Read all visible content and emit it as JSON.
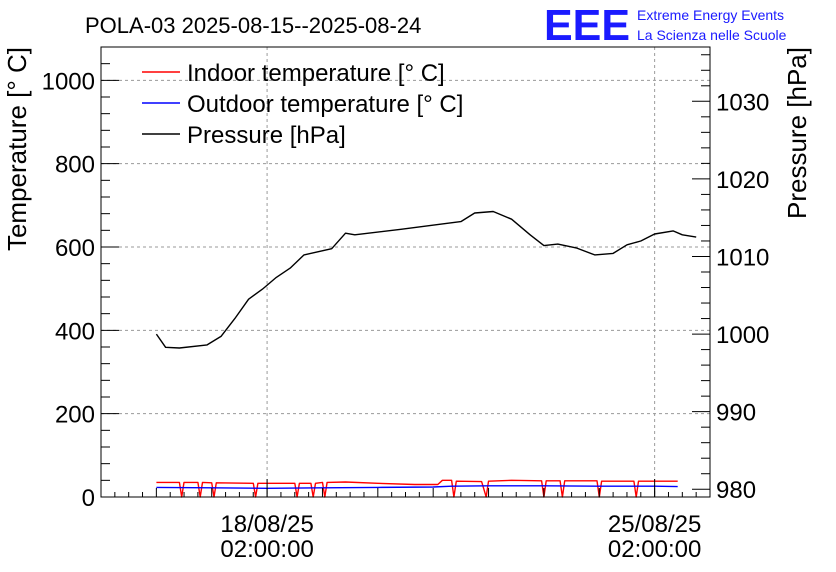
{
  "logo": {
    "mark": "EEE",
    "line1": "Extreme Energy Events",
    "line2": "La Scienza nelle Scuole",
    "color": "#1a1aff"
  },
  "chart_data": {
    "type": "line",
    "title": "POLA-03 2025-08-15--2025-08-24",
    "ylabel": "Temperature [° C]",
    "y2label": "Pressure [hPa]",
    "ylim": [
      0,
      1080
    ],
    "y2lim": [
      979,
      1037
    ],
    "yticks": [
      0,
      200,
      400,
      600,
      800,
      1000
    ],
    "y2ticks": [
      980,
      990,
      1000,
      1010,
      1020,
      1030
    ],
    "xlim": [
      "2025-08-15T02:00:00",
      "2025-08-26T02:00:00"
    ],
    "xticks": [
      {
        "date": "2025-08-18T02:00:00",
        "label1": "18/08/25",
        "label2": "02:00:00"
      },
      {
        "date": "2025-08-25T02:00:00",
        "label1": "25/08/25",
        "label2": "02:00:00"
      }
    ],
    "grid": true,
    "legend_position": "top-left",
    "series": [
      {
        "name": "Indoor temperature [° C]",
        "color": "#ff0000",
        "axis": "left",
        "points": [
          [
            "2025-08-16T02:00:00",
            35
          ],
          [
            "2025-08-16T12:00:00",
            35
          ],
          [
            "2025-08-16T13:00:00",
            0
          ],
          [
            "2025-08-16T14:00:00",
            35
          ],
          [
            "2025-08-16T20:00:00",
            35
          ],
          [
            "2025-08-16T21:00:00",
            0
          ],
          [
            "2025-08-16T22:00:00",
            35
          ],
          [
            "2025-08-17T02:00:00",
            34
          ],
          [
            "2025-08-17T03:00:00",
            0
          ],
          [
            "2025-08-17T04:00:00",
            34
          ],
          [
            "2025-08-17T20:00:00",
            33
          ],
          [
            "2025-08-17T21:00:00",
            0
          ],
          [
            "2025-08-17T22:00:00",
            33
          ],
          [
            "2025-08-18T14:00:00",
            33
          ],
          [
            "2025-08-18T15:00:00",
            0
          ],
          [
            "2025-08-18T16:00:00",
            33
          ],
          [
            "2025-08-18T21:00:00",
            33
          ],
          [
            "2025-08-18T22:00:00",
            0
          ],
          [
            "2025-08-18T23:00:00",
            33
          ],
          [
            "2025-08-19T02:00:00",
            35
          ],
          [
            "2025-08-19T03:00:00",
            0
          ],
          [
            "2025-08-19T04:00:00",
            35
          ],
          [
            "2025-08-19T12:00:00",
            36
          ],
          [
            "2025-08-20T02:00:00",
            33
          ],
          [
            "2025-08-20T18:00:00",
            30
          ],
          [
            "2025-08-21T04:00:00",
            30
          ],
          [
            "2025-08-21T06:00:00",
            40
          ],
          [
            "2025-08-21T10:00:00",
            40
          ],
          [
            "2025-08-21T11:00:00",
            0
          ],
          [
            "2025-08-21T12:00:00",
            38
          ],
          [
            "2025-08-21T23:00:00",
            37
          ],
          [
            "2025-08-22T01:00:00",
            0
          ],
          [
            "2025-08-22T02:00:00",
            38
          ],
          [
            "2025-08-22T12:00:00",
            40
          ],
          [
            "2025-08-23T01:00:00",
            39
          ],
          [
            "2025-08-23T02:00:00",
            0
          ],
          [
            "2025-08-23T03:00:00",
            39
          ],
          [
            "2025-08-23T09:00:00",
            39
          ],
          [
            "2025-08-23T10:00:00",
            0
          ],
          [
            "2025-08-23T11:00:00",
            39
          ],
          [
            "2025-08-24T01:00:00",
            39
          ],
          [
            "2025-08-24T02:00:00",
            0
          ],
          [
            "2025-08-24T03:00:00",
            38
          ],
          [
            "2025-08-24T17:00:00",
            38
          ],
          [
            "2025-08-24T18:00:00",
            0
          ],
          [
            "2025-08-24T19:00:00",
            38
          ],
          [
            "2025-08-25T12:00:00",
            38
          ]
        ]
      },
      {
        "name": "Outdoor temperature [° C]",
        "color": "#0000ff",
        "axis": "left",
        "points": [
          [
            "2025-08-16T02:00:00",
            23
          ],
          [
            "2025-08-17T02:00:00",
            22
          ],
          [
            "2025-08-18T02:00:00",
            21
          ],
          [
            "2025-08-19T02:00:00",
            22
          ],
          [
            "2025-08-20T02:00:00",
            23
          ],
          [
            "2025-08-21T02:00:00",
            24
          ],
          [
            "2025-08-21T10:00:00",
            26
          ],
          [
            "2025-08-22T02:00:00",
            27
          ],
          [
            "2025-08-23T02:00:00",
            27
          ],
          [
            "2025-08-24T02:00:00",
            26
          ],
          [
            "2025-08-25T02:00:00",
            26
          ],
          [
            "2025-08-25T12:00:00",
            25
          ]
        ]
      },
      {
        "name": "Pressure [hPa]",
        "color": "#000000",
        "axis": "right",
        "points": [
          [
            "2025-08-16T02:00:00",
            1000.0
          ],
          [
            "2025-08-16T06:00:00",
            998.3
          ],
          [
            "2025-08-16T12:00:00",
            998.2
          ],
          [
            "2025-08-17T00:00:00",
            998.6
          ],
          [
            "2025-08-17T06:00:00",
            999.7
          ],
          [
            "2025-08-17T12:00:00",
            1002.0
          ],
          [
            "2025-08-17T18:00:00",
            1004.5
          ],
          [
            "2025-08-18T00:00:00",
            1005.8
          ],
          [
            "2025-08-18T06:00:00",
            1007.3
          ],
          [
            "2025-08-18T12:00:00",
            1008.5
          ],
          [
            "2025-08-18T18:00:00",
            1010.2
          ],
          [
            "2025-08-19T00:00:00",
            1010.6
          ],
          [
            "2025-08-19T06:00:00",
            1011.0
          ],
          [
            "2025-08-19T12:00:00",
            1013.0
          ],
          [
            "2025-08-19T16:00:00",
            1012.8
          ],
          [
            "2025-08-20T12:00:00",
            1013.5
          ],
          [
            "2025-08-21T06:00:00",
            1014.2
          ],
          [
            "2025-08-21T14:00:00",
            1014.5
          ],
          [
            "2025-08-21T20:00:00",
            1015.6
          ],
          [
            "2025-08-22T04:00:00",
            1015.8
          ],
          [
            "2025-08-22T12:00:00",
            1014.8
          ],
          [
            "2025-08-22T20:00:00",
            1012.8
          ],
          [
            "2025-08-23T02:00:00",
            1011.4
          ],
          [
            "2025-08-23T08:00:00",
            1011.6
          ],
          [
            "2025-08-23T16:00:00",
            1011.1
          ],
          [
            "2025-08-24T00:00:00",
            1010.2
          ],
          [
            "2025-08-24T08:00:00",
            1010.4
          ],
          [
            "2025-08-24T14:00:00",
            1011.5
          ],
          [
            "2025-08-24T20:00:00",
            1012.0
          ],
          [
            "2025-08-25T02:00:00",
            1012.9
          ],
          [
            "2025-08-25T10:00:00",
            1013.3
          ],
          [
            "2025-08-25T14:00:00",
            1012.8
          ],
          [
            "2025-08-25T20:00:00",
            1012.5
          ]
        ]
      }
    ]
  }
}
